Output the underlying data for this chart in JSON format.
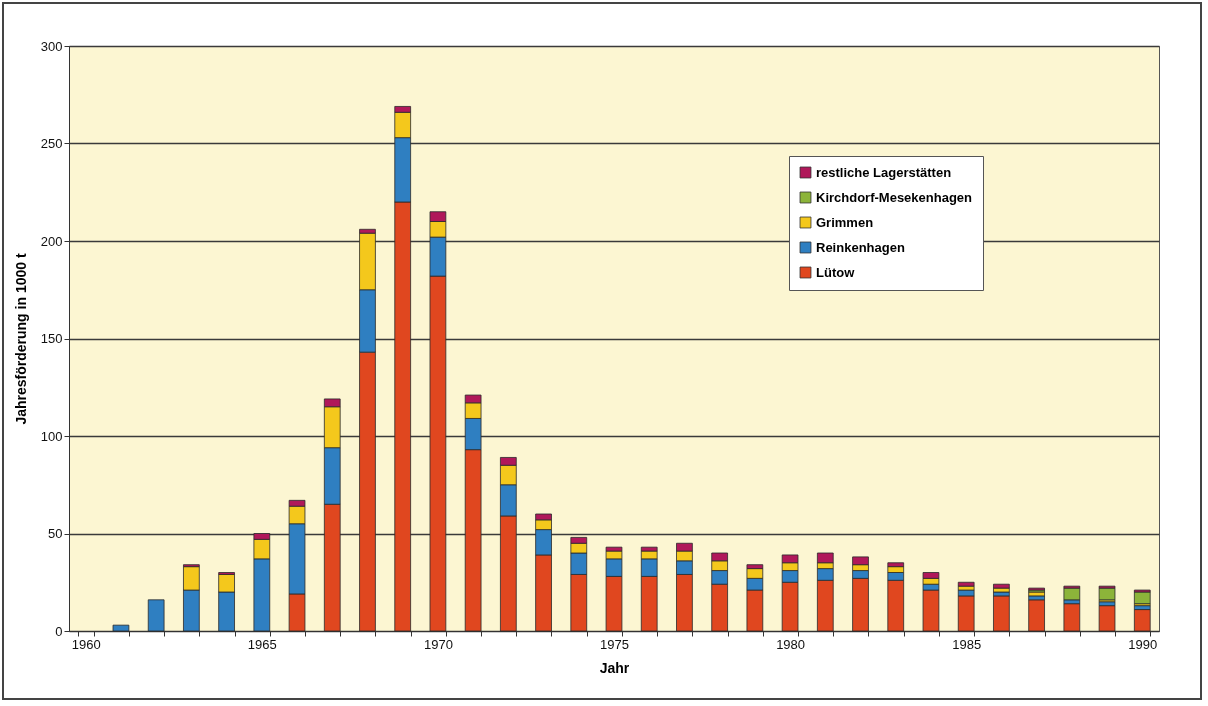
{
  "chart_data": {
    "type": "bar",
    "stacked": true,
    "xlabel": "Jahr",
    "ylabel": "Jahresförderung in 1000 t",
    "categories": [
      "1960",
      null,
      null,
      null,
      null,
      "1965",
      null,
      null,
      null,
      null,
      "1970",
      null,
      null,
      null,
      null,
      "1975",
      null,
      null,
      null,
      null,
      "1980",
      null,
      null,
      null,
      null,
      "1985",
      null,
      null,
      null,
      null,
      "1990"
    ],
    "series": [
      {
        "name": "Lütow",
        "color": "#e0471f",
        "values": [
          null,
          null,
          null,
          null,
          null,
          null,
          19,
          65,
          143,
          220,
          182,
          93,
          59,
          39,
          29,
          28,
          28,
          29,
          24,
          21,
          25,
          26,
          27,
          26,
          21,
          18,
          18,
          16,
          14,
          13,
          11
        ]
      },
      {
        "name": "Reinkenhagen",
        "color": "#2f7fc1",
        "values": [
          null,
          3,
          16,
          21,
          20,
          37,
          36,
          29,
          32,
          33,
          20,
          16,
          16,
          13,
          11,
          9,
          9,
          7,
          7,
          6,
          6,
          6,
          4,
          4,
          3,
          3,
          2,
          2,
          2,
          2,
          2
        ]
      },
      {
        "name": "Grimmen",
        "color": "#f4c81c",
        "values": [
          null,
          null,
          null,
          12,
          9,
          10,
          9,
          21,
          29,
          13,
          8,
          8,
          10,
          5,
          5,
          4,
          4,
          5,
          5,
          5,
          4,
          3,
          3,
          3,
          3,
          2,
          2,
          2,
          null,
          1,
          1
        ]
      },
      {
        "name": "Kirchdorf-Mesekenhagen",
        "color": "#8cb43a",
        "values": [
          null,
          null,
          null,
          null,
          null,
          null,
          null,
          null,
          null,
          null,
          null,
          null,
          null,
          null,
          null,
          null,
          null,
          null,
          null,
          null,
          null,
          null,
          null,
          null,
          null,
          null,
          null,
          1,
          6,
          6,
          6
        ]
      },
      {
        "name": "restliche Lagerstätten",
        "color": "#b0185a",
        "values": [
          null,
          null,
          null,
          1,
          1,
          3,
          3,
          4,
          2,
          3,
          5,
          4,
          4,
          3,
          3,
          2,
          2,
          4,
          4,
          2,
          4,
          5,
          4,
          2,
          3,
          2,
          2,
          1,
          1,
          1,
          1
        ]
      }
    ],
    "ylim": [
      0,
      300
    ],
    "yticks": [
      0,
      50,
      100,
      150,
      200,
      250,
      300
    ],
    "grid": "y",
    "legend": "top right"
  }
}
